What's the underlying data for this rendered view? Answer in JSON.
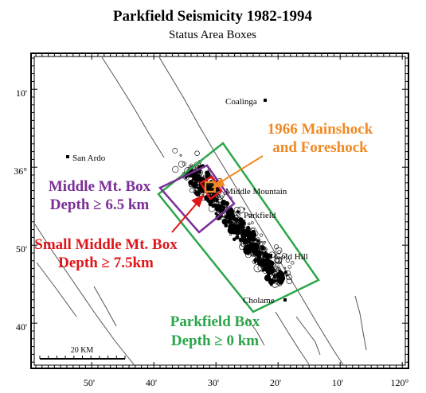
{
  "title": "Parkfield Seismicity 1982-1994",
  "subtitle": "Status Area Boxes",
  "lat_ticks": [
    {
      "label": "10'",
      "lat": 36.1667
    },
    {
      "label": "36°",
      "lat": 36.0
    },
    {
      "label": "50'",
      "lat": 35.8333
    },
    {
      "label": "40'",
      "lat": 35.6667
    }
  ],
  "lon_ticks": [
    {
      "label": "50'",
      "lon": -120.8333
    },
    {
      "label": "40'",
      "lon": -120.6667
    },
    {
      "label": "30'",
      "lon": -120.5
    },
    {
      "label": "20'",
      "lon": -120.3333
    },
    {
      "label": "10'",
      "lon": -120.1667
    },
    {
      "label": "120°",
      "lon": -120.0
    }
  ],
  "towns": [
    {
      "name": "Coalinga",
      "lat": 36.14,
      "lon": -120.36
    },
    {
      "name": "San Ardo",
      "lat": 36.02,
      "lon": -120.905
    },
    {
      "name": "Middle Mountain",
      "lat": 35.96,
      "lon": -120.54
    },
    {
      "name": "Parkfield",
      "lat": 35.9,
      "lon": -120.44
    },
    {
      "name": "Gold Hill",
      "lat": 35.82,
      "lon": -120.36
    },
    {
      "name": "Cholame",
      "lat": 35.725,
      "lon": -120.295
    }
  ],
  "boxes": [
    {
      "name": "Parkfield Box",
      "label_line1": "Parkfield Box",
      "label_line2": "Depth ≥ 0 km",
      "color": "#2ba64a"
    },
    {
      "name": "Middle Mt. Box",
      "label_line1": "Middle Mt. Box",
      "label_line2": "Depth ≥ 6.5 km",
      "color": "#7b2f96"
    },
    {
      "name": "Small Middle Mt. Box",
      "label_line1": "Small Middle Mt. Box",
      "label_line2": "Depth ≥ 7.5km",
      "color": "#e0161a"
    }
  ],
  "mainshock": {
    "label_line1": "1966 Mainshock",
    "label_line2": "and Foreshock",
    "color": "#f08a24"
  },
  "scale_bar": {
    "label": "20 KM"
  }
}
